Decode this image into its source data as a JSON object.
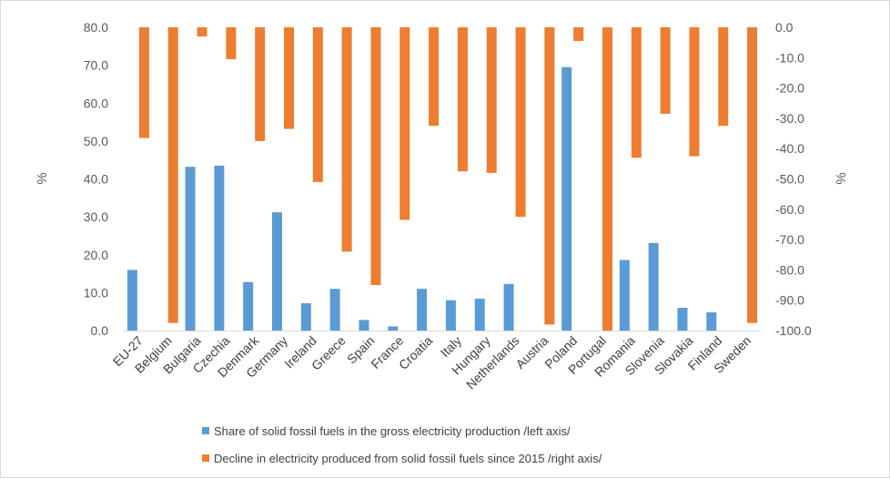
{
  "chart_data": {
    "type": "bar",
    "categories": [
      "EU-27",
      "Belgium",
      "Bulgaria",
      "Czechia",
      "Denmark",
      "Germany",
      "Ireland",
      "Greece",
      "Spain",
      "France",
      "Croatia",
      "Italy",
      "Hungary",
      "Netherlands",
      "Austria",
      "Poland",
      "Portugal",
      "Romania",
      "Slovenia",
      "Slovakia",
      "Finland",
      "Sweden"
    ],
    "series": [
      {
        "name": "Share of solid fossil fuels in the gross electricity production /left axis/",
        "axis": "left",
        "color": "#5b9bd5",
        "values": [
          16.0,
          0,
          43.2,
          43.5,
          12.8,
          31.2,
          7.2,
          11.0,
          2.8,
          1.1,
          11.0,
          8.0,
          8.4,
          12.3,
          0,
          69.5,
          0,
          18.6,
          23.1,
          6.0,
          4.8,
          0
        ]
      },
      {
        "name": "Decline in electricity produced from solid fossil fuels since 2015 /right axis/",
        "axis": "right",
        "color": "#ed7d31",
        "values": [
          -36.5,
          -97.5,
          -3.0,
          -10.5,
          -37.5,
          -33.5,
          -51.0,
          -74.0,
          -85.0,
          -63.5,
          -32.5,
          -47.5,
          -48.0,
          -62.5,
          -98.0,
          -4.5,
          -100.0,
          -43.0,
          -28.5,
          -42.5,
          -32.5,
          -97.5
        ]
      }
    ],
    "y_left": {
      "label": "%",
      "ylim": [
        0,
        80
      ],
      "ticks": [
        "80.0",
        "70.0",
        "60.0",
        "50.0",
        "40.0",
        "30.0",
        "20.0",
        "10.0",
        "0.0"
      ]
    },
    "y_right": {
      "label": "%",
      "ylim": [
        -100,
        0
      ],
      "ticks": [
        "0.0",
        "-10.0",
        "-20.0",
        "-30.0",
        "-40.0",
        "-50.0",
        "-60.0",
        "-70.0",
        "-80.0",
        "-90.0",
        "-100.0"
      ]
    },
    "grid": false,
    "legend_position": "bottom"
  }
}
